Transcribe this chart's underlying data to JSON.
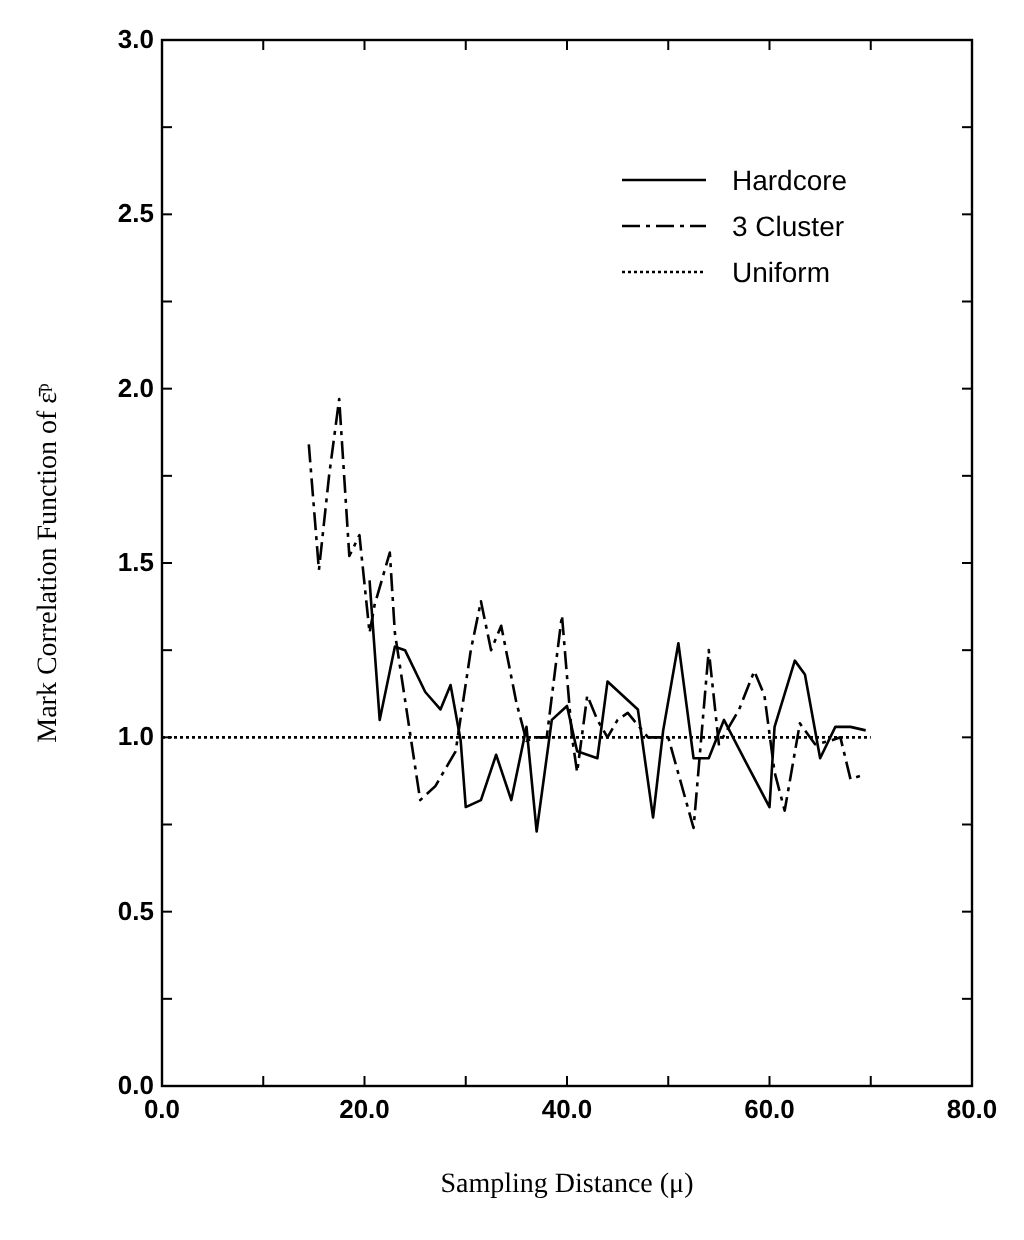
{
  "chart_data": {
    "type": "line",
    "xlabel": "Sampling Distance (μ)",
    "ylabel": "Mark Correlation Function of ε̄ᵖ",
    "xlim": [
      0,
      80
    ],
    "ylim": [
      0,
      3
    ],
    "xticks": [
      {
        "value": 0,
        "label": "0.0"
      },
      {
        "value": 10,
        "label": null
      },
      {
        "value": 20,
        "label": "20.0"
      },
      {
        "value": 30,
        "label": null
      },
      {
        "value": 40,
        "label": "40.0"
      },
      {
        "value": 50,
        "label": null
      },
      {
        "value": 60,
        "label": "60.0"
      },
      {
        "value": 70,
        "label": null
      },
      {
        "value": 80,
        "label": "80.0"
      }
    ],
    "yticks": [
      {
        "value": 0,
        "label": "0.0"
      },
      {
        "value": 0.25,
        "label": null
      },
      {
        "value": 0.5,
        "label": "0.5"
      },
      {
        "value": 0.75,
        "label": null
      },
      {
        "value": 1,
        "label": "1.0"
      },
      {
        "value": 1.25,
        "label": null
      },
      {
        "value": 1.5,
        "label": "1.5"
      },
      {
        "value": 1.75,
        "label": null
      },
      {
        "value": 2,
        "label": "2.0"
      },
      {
        "value": 2.25,
        "label": null
      },
      {
        "value": 2.5,
        "label": "2.5"
      },
      {
        "value": 2.75,
        "label": null
      },
      {
        "value": 3,
        "label": "3.0"
      }
    ],
    "grid": false,
    "legend": "top right",
    "series": [
      {
        "name": "Hardcore",
        "color": "#000000",
        "line_style": "solid",
        "x": [
          20.5,
          21.5,
          23,
          24,
          26,
          27.5,
          28.5,
          29.5,
          30,
          31.5,
          33,
          34.5,
          36,
          37,
          38.5,
          40,
          41,
          43,
          44,
          47,
          48.5,
          49.5,
          51,
          52.5,
          54,
          55.5,
          58,
          60,
          60.5,
          62.5,
          63.5,
          65,
          66.5,
          68,
          69.5
        ],
        "values": [
          1.45,
          1.05,
          1.26,
          1.25,
          1.13,
          1.08,
          1.15,
          0.99,
          0.8,
          0.82,
          0.95,
          0.82,
          1.03,
          0.73,
          1.05,
          1.09,
          0.96,
          0.94,
          1.16,
          1.08,
          0.77,
          1.02,
          1.27,
          0.94,
          0.94,
          1.05,
          0.91,
          0.8,
          1.03,
          1.22,
          1.18,
          0.94,
          1.03,
          1.03,
          1.02
        ]
      },
      {
        "name": "3 Cluster",
        "color": "#000000",
        "line_style": "dashed",
        "x": [
          14.5,
          15.5,
          16.5,
          17.5,
          18.5,
          19.5,
          20.5,
          21,
          22.5,
          23,
          25.5,
          27,
          29,
          30.5,
          31.5,
          32.5,
          33.5,
          35,
          36,
          37,
          38,
          39.5,
          40.5,
          41,
          42,
          43,
          44,
          45,
          46,
          48,
          50,
          52.5,
          54,
          55,
          57,
          58.5,
          59.5,
          60.5,
          61.5,
          63,
          64.5,
          66,
          67,
          68,
          69
        ],
        "values": [
          1.84,
          1.48,
          1.75,
          1.97,
          1.52,
          1.58,
          1.3,
          1.38,
          1.53,
          1.3,
          0.82,
          0.86,
          0.96,
          1.25,
          1.39,
          1.25,
          1.32,
          1.1,
          0.99,
          1.0,
          1.0,
          1.35,
          1.0,
          0.9,
          1.12,
          1.05,
          1.0,
          1.05,
          1.07,
          1.0,
          1.0,
          0.74,
          1.25,
          0.98,
          1.08,
          1.19,
          1.12,
          0.9,
          0.79,
          1.04,
          0.98,
          0.99,
          1.0,
          0.88,
          0.89
        ]
      },
      {
        "name": "Uniform",
        "color": "#000000",
        "line_style": "dotted",
        "x": [
          0,
          70
        ],
        "values": [
          1,
          1
        ]
      }
    ]
  }
}
